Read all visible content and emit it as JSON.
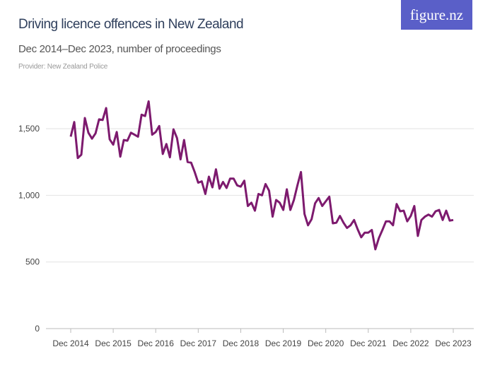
{
  "header": {
    "title": "Driving licence offences in New Zealand",
    "subtitle": "Dec 2014–Dec 2023, number of proceedings",
    "provider": "Provider: New Zealand Police",
    "logo_text": "figure.nz",
    "logo_color": "#5a5fc8"
  },
  "chart_data": {
    "type": "line",
    "title": "Driving licence offences in New Zealand",
    "subtitle": "Dec 2014–Dec 2023, number of proceedings",
    "xlabel": "",
    "ylabel": "",
    "frequency": "monthly",
    "x_range": [
      "Dec 2014",
      "Dec 2023"
    ],
    "x_ticks": [
      "Dec 2014",
      "Dec 2015",
      "Dec 2016",
      "Dec 2017",
      "Dec 2018",
      "Dec 2019",
      "Dec 2020",
      "Dec 2021",
      "Dec 2022",
      "Dec 2023"
    ],
    "y_ticks": [
      0,
      500,
      1000,
      1500
    ],
    "y_tick_labels": [
      "0",
      "500",
      "1,000",
      "1,500"
    ],
    "ylim": [
      0,
      1750
    ],
    "grid": "horizontal",
    "line_color": "#7d1a6e",
    "series": [
      {
        "values": [
          1440,
          1550,
          1280,
          1305,
          1580,
          1470,
          1425,
          1465,
          1570,
          1565,
          1655,
          1420,
          1380,
          1475,
          1290,
          1415,
          1410,
          1470,
          1455,
          1440,
          1605,
          1595,
          1705,
          1455,
          1475,
          1520,
          1310,
          1385,
          1285,
          1495,
          1430,
          1270,
          1415,
          1250,
          1245,
          1175,
          1095,
          1105,
          1010,
          1140,
          1060,
          1195,
          1050,
          1100,
          1055,
          1125,
          1125,
          1075,
          1065,
          1110,
          920,
          945,
          885,
          1010,
          1000,
          1085,
          1035,
          840,
          965,
          945,
          890,
          1045,
          890,
          965,
          1075,
          1175,
          860,
          775,
          820,
          940,
          980,
          920,
          955,
          990,
          790,
          795,
          845,
          795,
          755,
          775,
          815,
          745,
          685,
          720,
          720,
          740,
          595,
          680,
          740,
          805,
          805,
          775,
          935,
          880,
          885,
          805,
          845,
          920,
          695,
          815,
          840,
          855,
          840,
          880,
          890,
          815,
          885,
          810,
          815
        ]
      }
    ]
  }
}
